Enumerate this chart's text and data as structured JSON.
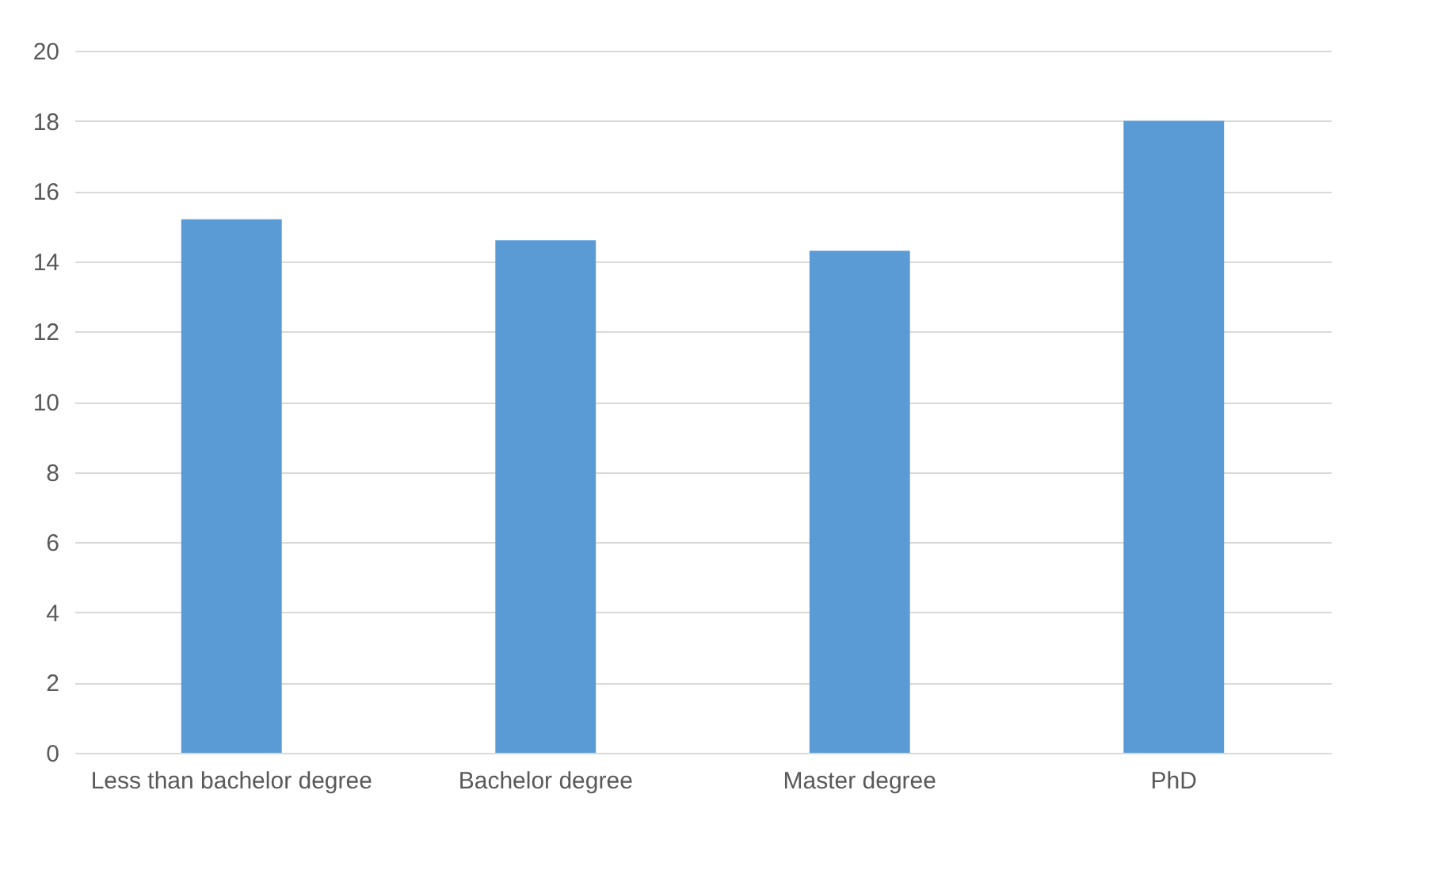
{
  "chart_data": {
    "type": "bar",
    "categories": [
      "Less than bachelor degree",
      "Bachelor degree",
      "Master degree",
      "PhD"
    ],
    "values": [
      15.2,
      14.6,
      14.3,
      18.0
    ],
    "color": "#5b9bd5",
    "ylim": [
      0,
      20
    ],
    "yticks": [
      0,
      2,
      4,
      6,
      8,
      10,
      12,
      14,
      16,
      18,
      20
    ],
    "grid": "y"
  }
}
